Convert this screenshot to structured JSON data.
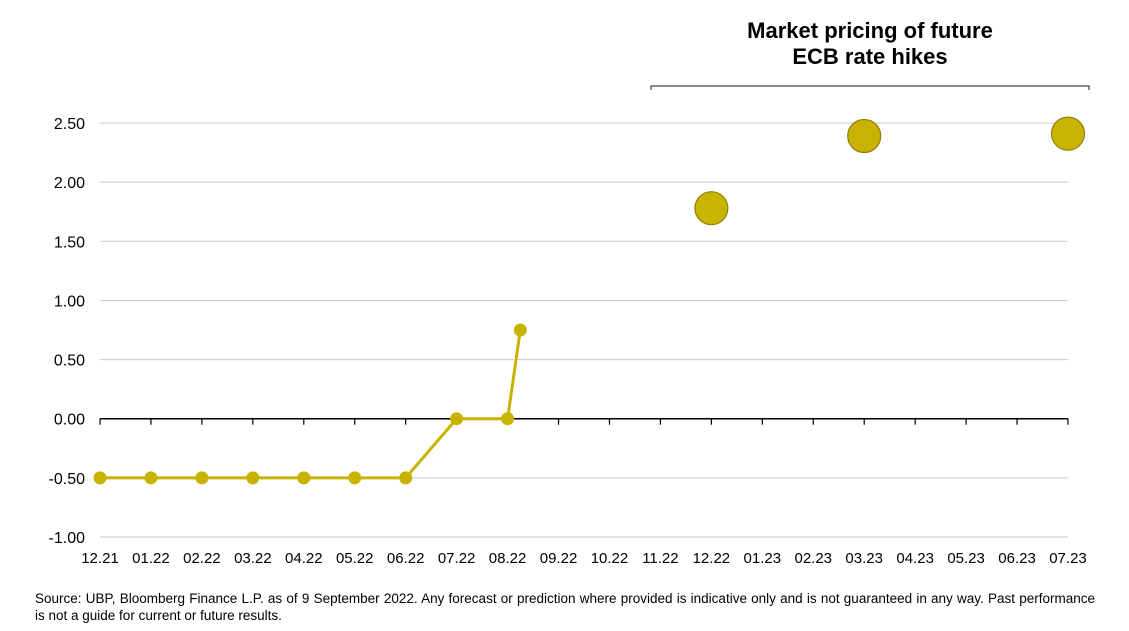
{
  "annotation": {
    "line1": "Market pricing of future",
    "line2": "ECB rate hikes"
  },
  "source": "Source: UBP, Bloomberg Finance L.P. as of 9 September 2022. Any forecast or prediction where provided is indicative only and is not guaranteed in any way. Past performance is not a guide for current or future results.",
  "chart_data": {
    "type": "line",
    "title": "",
    "xlabel": "",
    "ylabel": "",
    "categories": [
      "12.21",
      "01.22",
      "02.22",
      "03.22",
      "04.22",
      "05.22",
      "06.22",
      "07.22",
      "08.22",
      "09.22",
      "10.22",
      "11.22",
      "12.22",
      "01.23",
      "02.23",
      "03.23",
      "04.23",
      "05.23",
      "06.23",
      "07.23"
    ],
    "ylim": [
      -1.0,
      2.5
    ],
    "yticks": [
      "2.50",
      "2.00",
      "1.50",
      "1.00",
      "0.50",
      "0.00",
      "-0.50",
      "-1.00"
    ],
    "grid": true,
    "legend": "none",
    "series": [
      {
        "kind": "line-markers",
        "color": "#c8b400",
        "points": [
          {
            "x": "12.21",
            "y": -0.5
          },
          {
            "x": "01.22",
            "y": -0.5
          },
          {
            "x": "02.22",
            "y": -0.5
          },
          {
            "x": "03.22",
            "y": -0.5
          },
          {
            "x": "04.22",
            "y": -0.5
          },
          {
            "x": "05.22",
            "y": -0.5
          },
          {
            "x": "06.22",
            "y": -0.5
          },
          {
            "x": "07.22",
            "y": 0.0
          },
          {
            "x": "08.22",
            "y": 0.0
          },
          {
            "x": "08.22+",
            "y": 0.75
          }
        ]
      },
      {
        "kind": "bubbles",
        "color": "#c8b400",
        "points": [
          {
            "x": "12.22",
            "y": 1.78
          },
          {
            "x": "03.23",
            "y": 2.39
          },
          {
            "x": "07.23",
            "y": 2.41
          }
        ]
      }
    ]
  }
}
